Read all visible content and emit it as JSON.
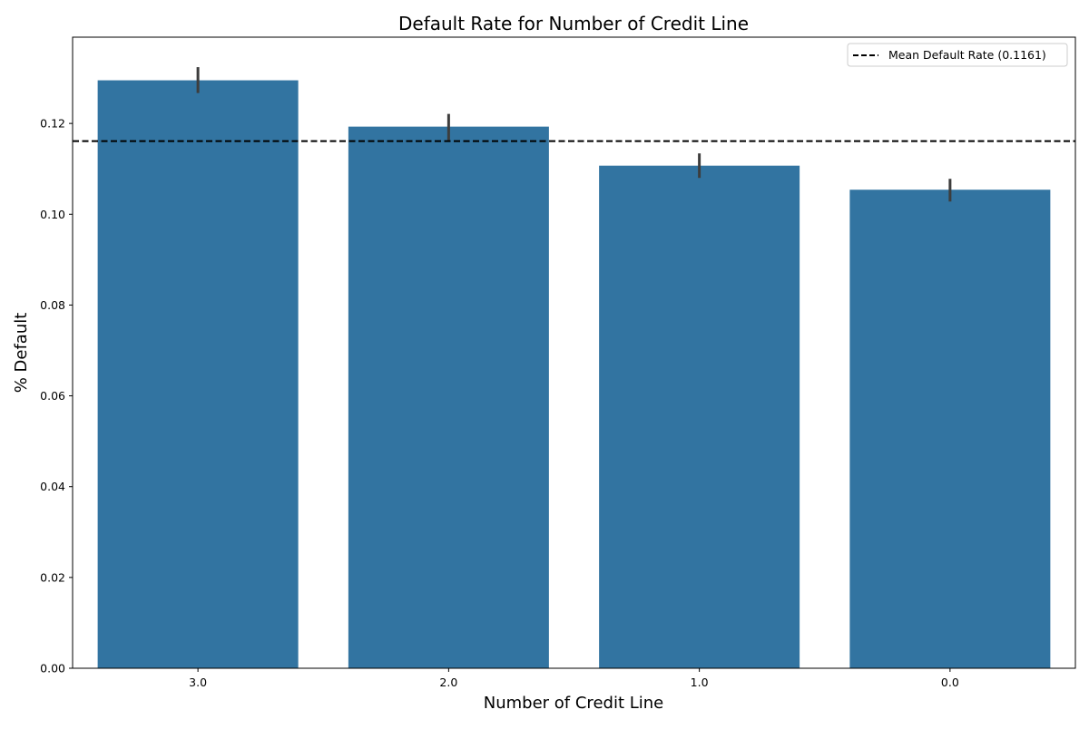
{
  "chart_data": {
    "type": "bar",
    "title": "Default Rate for Number of Credit Line",
    "xlabel": "Number of Credit Line",
    "ylabel": "% Default",
    "categories": [
      "3.0",
      "2.0",
      "1.0",
      "0.0"
    ],
    "values": [
      0.1295,
      0.1193,
      0.1107,
      0.1054
    ],
    "error_bars": [
      {
        "low": 0.1267,
        "high": 0.1324
      },
      {
        "low": 0.1163,
        "high": 0.1221
      },
      {
        "low": 0.108,
        "high": 0.1134
      },
      {
        "low": 0.1028,
        "high": 0.1078
      }
    ],
    "ylim": [
      0,
      0.139
    ],
    "yticks": [
      0.0,
      0.02,
      0.04,
      0.06,
      0.08,
      0.1,
      0.12
    ],
    "ytick_labels": [
      "0.00",
      "0.02",
      "0.04",
      "0.06",
      "0.08",
      "0.10",
      "0.12"
    ],
    "reference_line": {
      "value": 0.1161,
      "label": "Mean Default Rate (0.1161)",
      "style": "dashed",
      "color": "#000000"
    },
    "legend": {
      "position": "top-right",
      "entries": [
        "Mean Default Rate (0.1161)"
      ]
    },
    "grid": false,
    "colors": {
      "bar": "#3274a1",
      "error_bar": "#3d3d3d",
      "axis": "#000000"
    }
  }
}
